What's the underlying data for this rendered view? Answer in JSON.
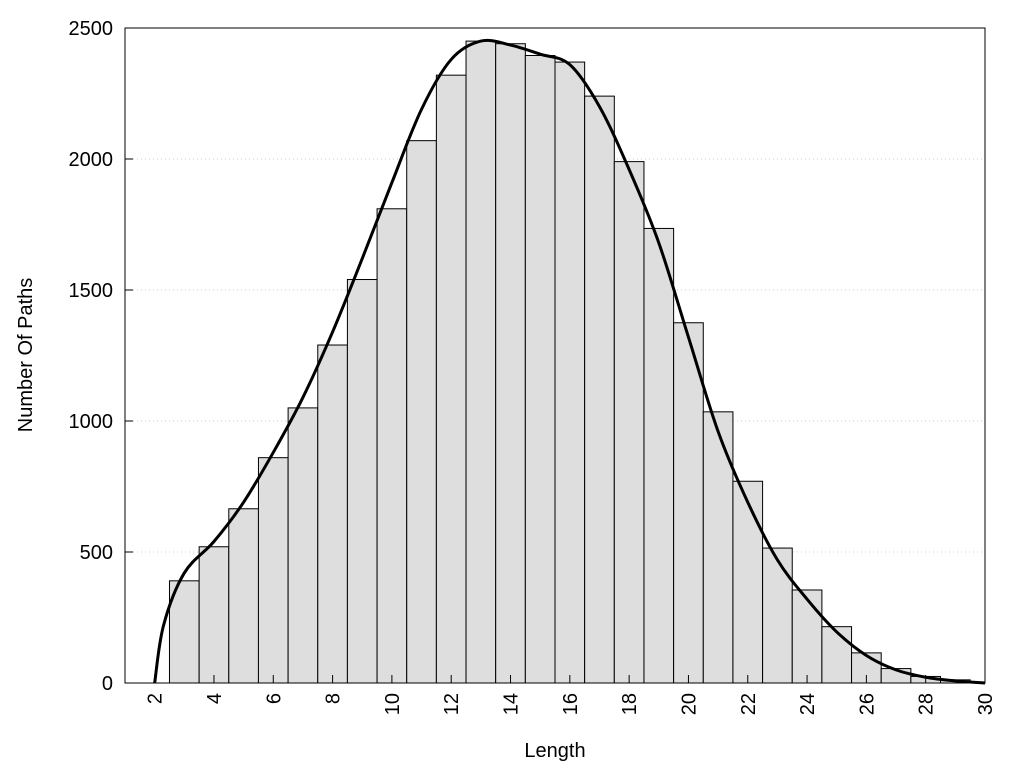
{
  "chart_data": {
    "type": "histogram",
    "x_label": "Length",
    "y_label": "Number Of Paths",
    "bins": [
      2.5,
      3.5,
      4.5,
      5.5,
      6.5,
      7.5,
      8.5,
      9.5,
      10.5,
      11.5,
      12.5,
      13.5,
      14.5,
      15.5,
      16.5,
      17.5,
      18.5,
      19.5,
      20.5,
      21.5,
      22.5,
      23.5,
      24.5,
      25.5,
      26.5,
      27.5,
      28.5,
      29.5
    ],
    "values": [
      390,
      520,
      665,
      860,
      1050,
      1290,
      1540,
      1810,
      2070,
      2320,
      2450,
      2440,
      2395,
      2370,
      2240,
      1990,
      1735,
      1375,
      1035,
      770,
      515,
      355,
      215,
      115,
      55,
      25,
      12
    ],
    "color": "#dedede",
    "line": {
      "color": "#000000",
      "x": [
        2,
        2.3,
        3,
        4,
        5,
        6,
        7,
        8,
        9,
        10,
        11,
        12,
        13,
        14,
        15,
        16,
        17,
        18,
        19,
        20,
        21,
        22,
        23,
        24,
        25,
        26,
        27,
        28,
        29,
        30
      ],
      "values": [
        0,
        220,
        420,
        540,
        690,
        880,
        1090,
        1340,
        1620,
        1910,
        2190,
        2380,
        2450,
        2435,
        2400,
        2360,
        2200,
        1960,
        1680,
        1320,
        960,
        690,
        470,
        320,
        195,
        105,
        50,
        22,
        8,
        0
      ]
    },
    "xlim": [
      1,
      30
    ],
    "ylim": [
      0,
      2500
    ],
    "xticks": [
      2,
      4,
      6,
      8,
      10,
      12,
      14,
      16,
      18,
      20,
      22,
      24,
      26,
      28,
      30
    ],
    "yticks": [
      0,
      500,
      1000,
      1500,
      2000,
      2500
    ],
    "grid": true
  }
}
